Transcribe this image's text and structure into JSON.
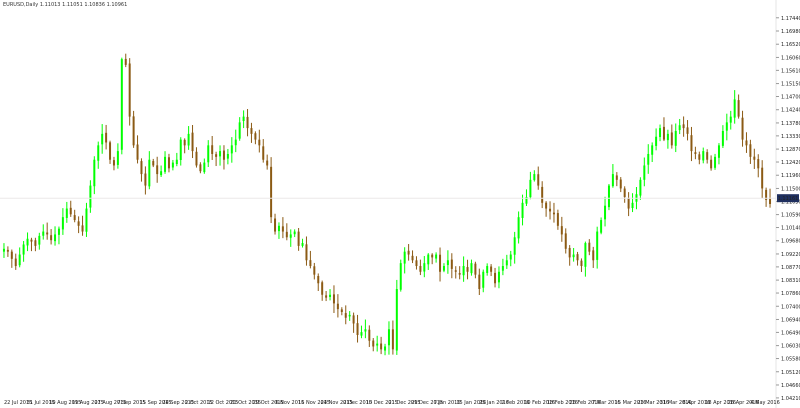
{
  "header": {
    "symbol": "EURUSD,Daily",
    "ohlc": "1.11013 1.11051 1.10836 1.10961"
  },
  "chart_data": {
    "type": "candlestick",
    "current_price": "1.11161",
    "ylim": [
      1.0365,
      1.1785
    ],
    "yticks": [
      "1.17440",
      "1.16980",
      "1.16520",
      "1.16060",
      "1.15610",
      "1.15150",
      "1.14700",
      "1.14240",
      "1.13780",
      "1.13330",
      "1.12870",
      "1.12420",
      "1.11960",
      "1.11500",
      "1.11050",
      "1.10590",
      "1.10140",
      "1.09680",
      "1.09220",
      "1.08770",
      "1.08310",
      "1.07860",
      "1.07400",
      "1.06940",
      "1.06490",
      "1.06030",
      "1.05580",
      "1.05120",
      "1.04660",
      "1.04210",
      "1.03750"
    ],
    "xticks": [
      "22 Jul 2015",
      "31 Jul 2015",
      "10 Aug 2015",
      "19 Aug 2015",
      "27 Aug 2015",
      "7 Sep 2015",
      "15 Sep 2015",
      "24 Sep 2015",
      "2 Oct 2015",
      "12 Oct 2015",
      "21 Oct 2015",
      "29 Oct 2015",
      "6 Nov 2015",
      "16 Nov 2015",
      "24 Nov 2015",
      "2 Dec 2015",
      "10 Dec 2015",
      "21 Dec 2015",
      "29 Dec 2015",
      "7 Jan 2016",
      "15 Jan 2016",
      "25 Jan 2016",
      "2 Feb 2016",
      "10 Feb 2016",
      "18 Feb 2016",
      "26 Feb 2016",
      "7 Mar 2016",
      "15 Mar 2016",
      "23 Mar 2016",
      "31 Mar 2016",
      "8 Apr 2016",
      "18 Apr 2016",
      "26 Apr 2016",
      "4 May 2016"
    ],
    "colors": {
      "bull": "#00ff00",
      "bear": "#8b5a14",
      "price_tag": "#1f2f5f"
    },
    "closes": [
      1.094,
      1.093,
      1.0905,
      1.088,
      1.092,
      1.0955,
      1.0975,
      1.0965,
      1.095,
      1.0985,
      1.1,
      1.099,
      1.097,
      1.099,
      1.101,
      1.105,
      1.108,
      1.106,
      1.104,
      1.102,
      1.1,
      1.108,
      1.116,
      1.125,
      1.13,
      1.134,
      1.131,
      1.125,
      1.123,
      1.128,
      1.16,
      1.158,
      1.14,
      1.13,
      1.125,
      1.12,
      1.116,
      1.125,
      1.123,
      1.12,
      1.121,
      1.126,
      1.122,
      1.124,
      1.125,
      1.132,
      1.13,
      1.134,
      1.128,
      1.123,
      1.121,
      1.124,
      1.13,
      1.127,
      1.126,
      1.128,
      1.125,
      1.127,
      1.13,
      1.132,
      1.138,
      1.14,
      1.136,
      1.134,
      1.132,
      1.13,
      1.125,
      1.123,
      1.105,
      1.1,
      1.102,
      1.1,
      1.098,
      1.099,
      1.1,
      1.095,
      1.096,
      1.09,
      1.088,
      1.085,
      1.082,
      1.078,
      1.077,
      1.078,
      1.075,
      1.073,
      1.072,
      1.07,
      1.071,
      1.068,
      1.064,
      1.065,
      1.066,
      1.062,
      1.06,
      1.061,
      1.059,
      1.06,
      1.066,
      1.059,
      1.08,
      1.089,
      1.093,
      1.092,
      1.09,
      1.088,
      1.086,
      1.089,
      1.092,
      1.091,
      1.092,
      1.086,
      1.088,
      1.09,
      1.087,
      1.086,
      1.085,
      1.088,
      1.086,
      1.089,
      1.085,
      1.08,
      1.086,
      1.088,
      1.086,
      1.082,
      1.086,
      1.088,
      1.09,
      1.092,
      1.098,
      1.105,
      1.11,
      1.112,
      1.118,
      1.12,
      1.116,
      1.11,
      1.108,
      1.107,
      1.106,
      1.102,
      1.099,
      1.094,
      1.091,
      1.092,
      1.09,
      1.088,
      1.096,
      1.093,
      1.09,
      1.1,
      1.104,
      1.109,
      1.116,
      1.12,
      1.118,
      1.115,
      1.112,
      1.108,
      1.11,
      1.113,
      1.118,
      1.123,
      1.127,
      1.13,
      1.133,
      1.136,
      1.132,
      1.134,
      1.13,
      1.135,
      1.137,
      1.136,
      1.134,
      1.128,
      1.127,
      1.125,
      1.128,
      1.125,
      1.122,
      1.126,
      1.13,
      1.135,
      1.138,
      1.14,
      1.146,
      1.14,
      1.132,
      1.13,
      1.126,
      1.125,
      1.122,
      1.115,
      1.111,
      1.1096
    ]
  }
}
